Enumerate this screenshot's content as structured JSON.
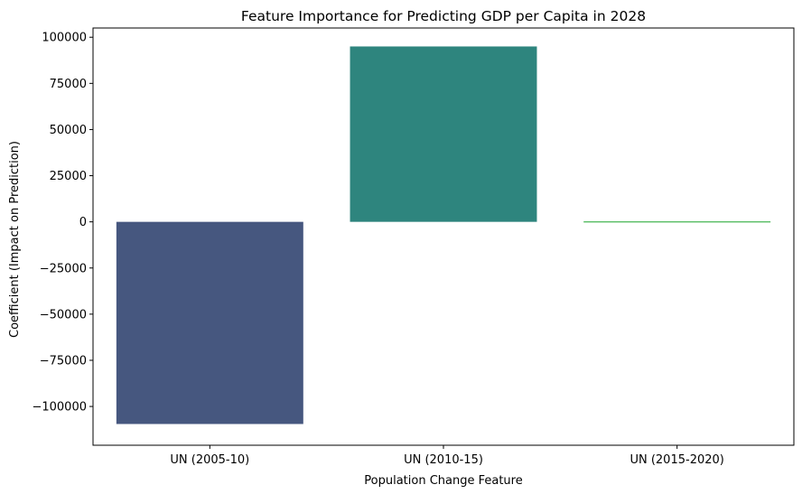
{
  "chart_data": {
    "type": "bar",
    "title": "Feature Importance for Predicting GDP per Capita in 2028",
    "xlabel": "Population Change Feature",
    "ylabel": "Coefficient (Impact on Prediction)",
    "categories": [
      "UN (2005-10)",
      "UN (2010-15)",
      "UN (2015-2020)"
    ],
    "values": [
      -109500,
      95000,
      -400
    ],
    "colors": [
      "#46577f",
      "#2e857e",
      "#5dbf68"
    ],
    "ylim": [
      -121000,
      105000
    ],
    "yticks": [
      -100000,
      -75000,
      -50000,
      -25000,
      0,
      25000,
      50000,
      75000,
      100000
    ],
    "ytick_labels": [
      "−100000",
      "−75000",
      "−50000",
      "−25000",
      "0",
      "25000",
      "50000",
      "75000",
      "100000"
    ],
    "grid": false,
    "legend": "none"
  }
}
